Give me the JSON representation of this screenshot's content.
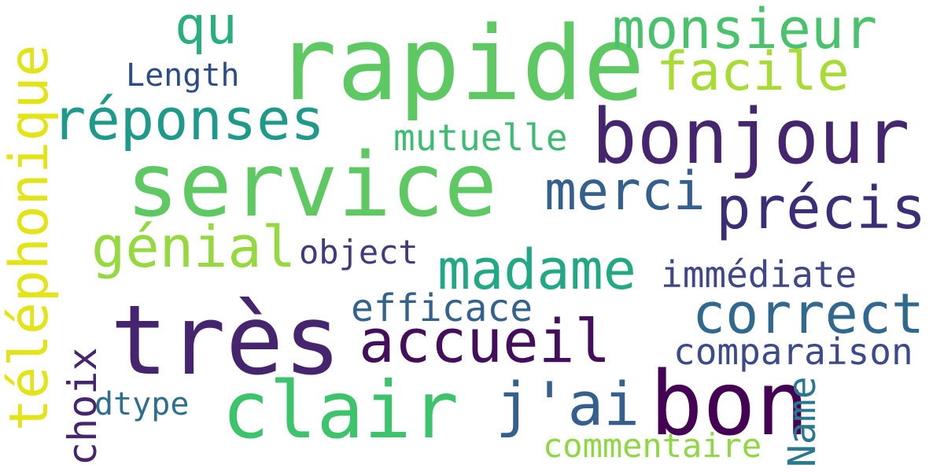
{
  "wordcloud": {
    "words": [
      {
        "key": "rapide",
        "text": "rapide",
        "color": "#5ec962"
      },
      {
        "key": "service",
        "text": "service",
        "color": "#5ec962"
      },
      {
        "key": "tres",
        "text": "très",
        "color": "#46256f"
      },
      {
        "key": "bonjour",
        "text": "bonjour",
        "color": "#46256f"
      },
      {
        "key": "bon",
        "text": "bon",
        "color": "#440154"
      },
      {
        "key": "clair",
        "text": "clair",
        "color": "#3ec36d"
      },
      {
        "key": "accueil",
        "text": "accueil",
        "color": "#440f5a"
      },
      {
        "key": "jai",
        "text": "j'ai",
        "color": "#355f8d"
      },
      {
        "key": "reponses",
        "text": "réponses",
        "color": "#1f9a8a"
      },
      {
        "key": "monsieur",
        "text": "monsieur",
        "color": "#4ac16d"
      },
      {
        "key": "facile",
        "text": "facile",
        "color": "#a8db34"
      },
      {
        "key": "merci",
        "text": "merci",
        "color": "#355f8d"
      },
      {
        "key": "precis",
        "text": "précis",
        "color": "#3b2d76"
      },
      {
        "key": "genial",
        "text": "génial",
        "color": "#95d840"
      },
      {
        "key": "madame",
        "text": "madame",
        "color": "#22a884"
      },
      {
        "key": "correct",
        "text": "correct",
        "color": "#31688e"
      },
      {
        "key": "qu",
        "text": "qu",
        "color": "#29af7f"
      },
      {
        "key": "mutuelle",
        "text": "mutuelle",
        "color": "#3fbc73"
      },
      {
        "key": "length",
        "text": "Length",
        "color": "#2c4c85"
      },
      {
        "key": "object",
        "text": "object",
        "color": "#3f3b7d"
      },
      {
        "key": "immediate",
        "text": "immédiate",
        "color": "#3f4788"
      },
      {
        "key": "efficace",
        "text": "efficace",
        "color": "#33638d"
      },
      {
        "key": "comparaison",
        "text": "comparaison",
        "color": "#3d4a89"
      },
      {
        "key": "dtype",
        "text": "dtype",
        "color": "#2e6f8e"
      },
      {
        "key": "commentaire",
        "text": "commentaire",
        "color": "#8fd744"
      },
      {
        "key": "telephonique",
        "text": "téléphonique",
        "color": "#e3e418"
      },
      {
        "key": "choix",
        "text": "choix",
        "color": "#46256f"
      },
      {
        "key": "name",
        "text": "Name",
        "color": "#2a788e"
      }
    ]
  }
}
